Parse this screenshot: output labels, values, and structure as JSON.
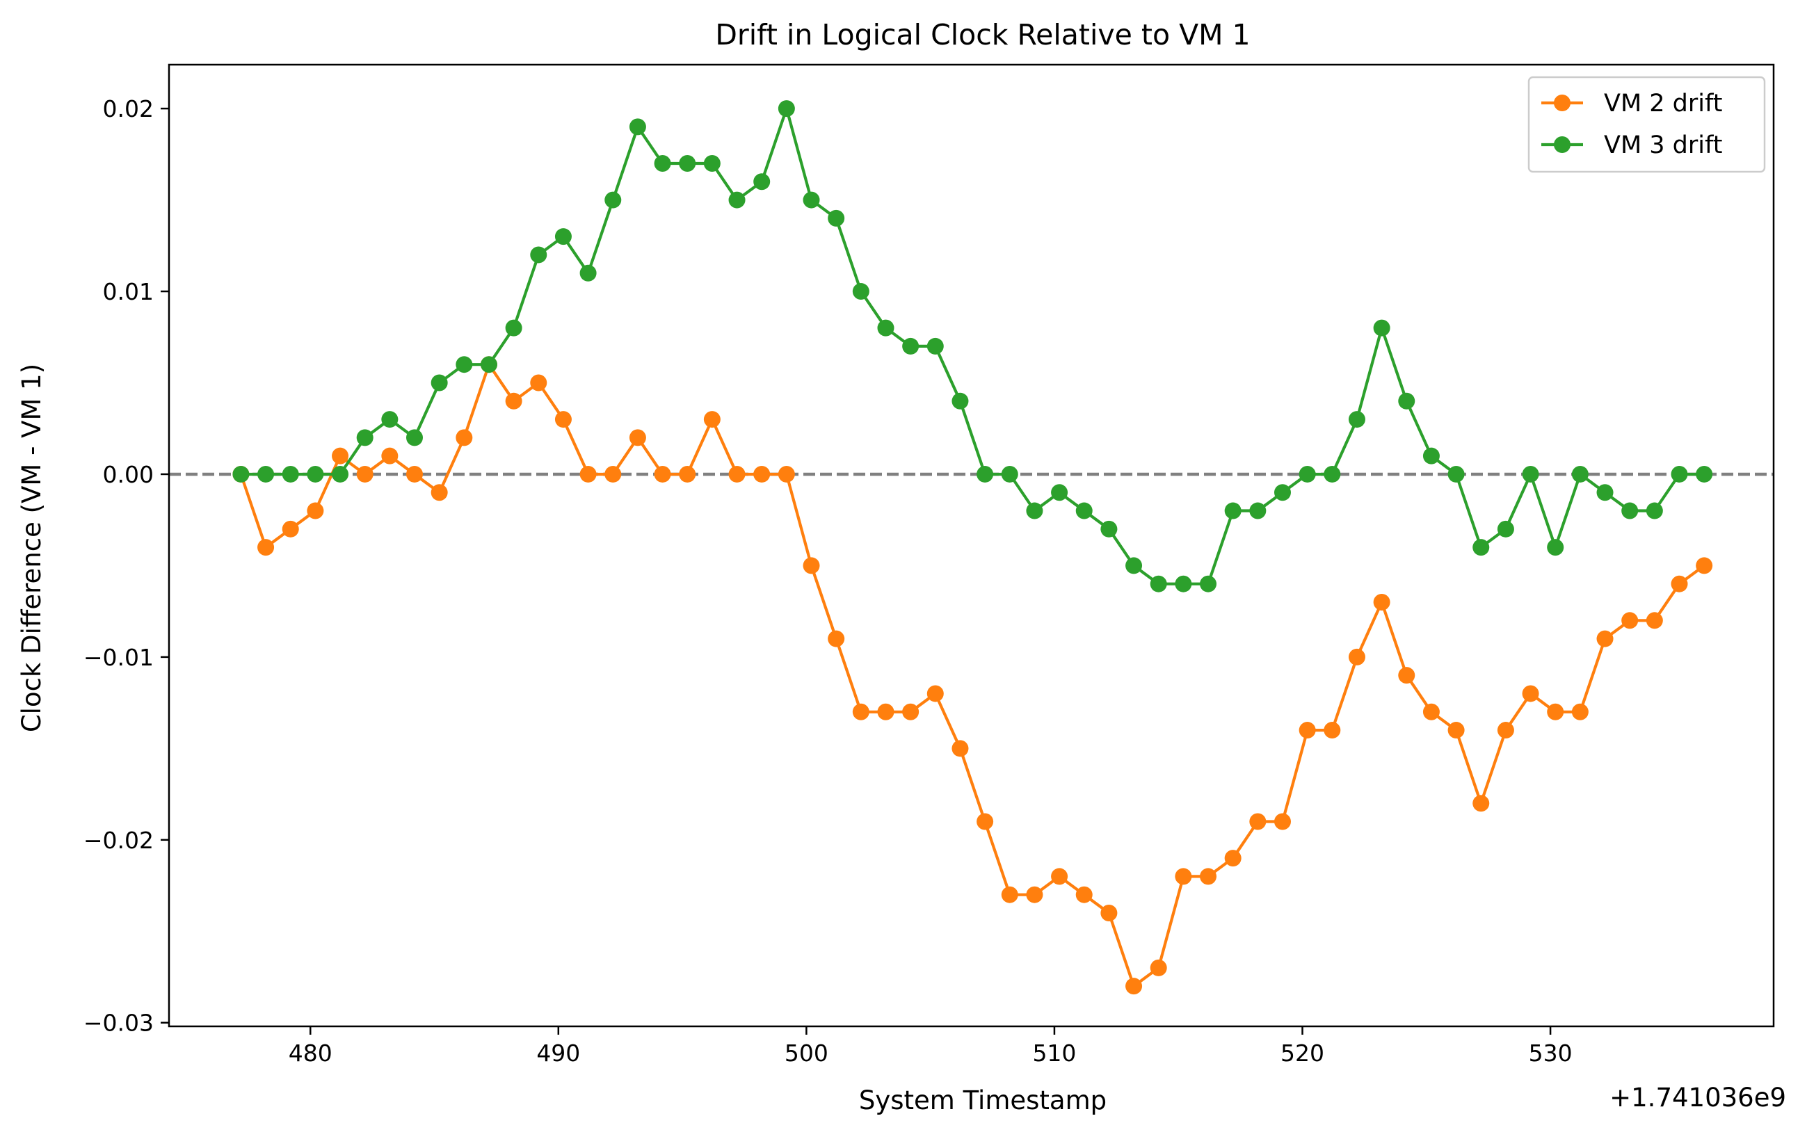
{
  "chart_data": {
    "type": "line",
    "title": "Drift in Logical Clock Relative to VM 1",
    "xlabel": "System Timestamp",
    "ylabel": "Clock Difference (VM - VM 1)",
    "x_offset_label": "+1.741036e9",
    "x_unit_note": "x values are seconds, shown relative to the printed offset +1.741036e9",
    "xlim": [
      474.3,
      539.0
    ],
    "ylim": [
      -0.0302,
      0.0224
    ],
    "xticks": [
      480,
      490,
      500,
      510,
      520,
      530
    ],
    "xtick_labels": [
      "480",
      "490",
      "500",
      "510",
      "520",
      "530"
    ],
    "yticks": [
      -0.03,
      -0.02,
      -0.01,
      0.0,
      0.01,
      0.02
    ],
    "ytick_labels": [
      "−0.03",
      "−0.02",
      "−0.01",
      "0.00",
      "0.01",
      "0.02"
    ],
    "reference_line": {
      "y": 0.0,
      "style": "dashed",
      "color": "#808080"
    },
    "legend_position": "top-right",
    "grid": false,
    "x": [
      477.2,
      478.2,
      479.2,
      480.2,
      481.2,
      482.2,
      483.2,
      484.2,
      485.2,
      486.2,
      487.2,
      488.2,
      489.2,
      490.2,
      491.2,
      492.2,
      493.2,
      494.2,
      495.2,
      496.2,
      497.2,
      498.2,
      499.2,
      500.2,
      501.2,
      502.2,
      503.2,
      504.2,
      505.2,
      506.2,
      507.2,
      508.2,
      509.2,
      510.2,
      511.2,
      512.2,
      513.2,
      514.2,
      515.2,
      516.2,
      517.2,
      518.2,
      519.2,
      520.2,
      521.2,
      522.2,
      523.2,
      524.2,
      525.2,
      526.2,
      527.2,
      528.2,
      529.2,
      530.2,
      531.2,
      532.2,
      533.2,
      534.2,
      535.2,
      536.2
    ],
    "series": [
      {
        "name": "VM 2 drift",
        "color": "#ff7f0e",
        "values": [
          0.0,
          -0.004,
          -0.003,
          -0.002,
          0.001,
          0.0,
          0.001,
          0.0,
          -0.001,
          0.002,
          0.006,
          0.004,
          0.005,
          0.003,
          0.0,
          0.0,
          0.002,
          0.0,
          0.0,
          0.003,
          0.0,
          0.0,
          0.0,
          -0.005,
          -0.009,
          -0.013,
          -0.013,
          -0.013,
          -0.012,
          -0.015,
          -0.019,
          -0.023,
          -0.023,
          -0.022,
          -0.023,
          -0.024,
          -0.028,
          -0.027,
          -0.022,
          -0.022,
          -0.021,
          -0.019,
          -0.019,
          -0.014,
          -0.014,
          -0.01,
          -0.007,
          -0.011,
          -0.013,
          -0.014,
          -0.018,
          -0.014,
          -0.012,
          -0.013,
          -0.013,
          -0.009,
          -0.008,
          -0.008,
          -0.006,
          -0.005
        ]
      },
      {
        "name": "VM 3 drift",
        "color": "#2ca02c",
        "values": [
          0.0,
          0.0,
          0.0,
          0.0,
          0.0,
          0.002,
          0.003,
          0.002,
          0.005,
          0.006,
          0.006,
          0.008,
          0.012,
          0.013,
          0.011,
          0.015,
          0.019,
          0.017,
          0.017,
          0.017,
          0.015,
          0.016,
          0.02,
          0.015,
          0.014,
          0.01,
          0.008,
          0.007,
          0.007,
          0.004,
          0.0,
          0.0,
          -0.002,
          -0.001,
          -0.002,
          -0.003,
          -0.005,
          -0.006,
          -0.006,
          -0.006,
          -0.002,
          -0.002,
          -0.001,
          0.0,
          0.0,
          0.003,
          0.008,
          0.004,
          0.001,
          0.0,
          -0.004,
          -0.003,
          0.0,
          -0.004,
          0.0,
          -0.001,
          -0.002,
          -0.002,
          0.0,
          0.0
        ]
      }
    ]
  }
}
